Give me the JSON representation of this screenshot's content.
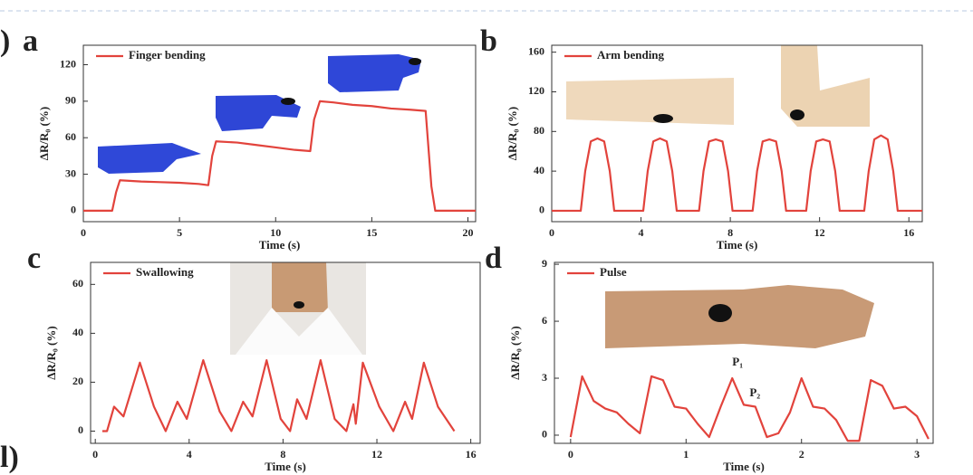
{
  "edge_texts": [
    ")",
    "l)"
  ],
  "chart_data": [
    {
      "type": "line",
      "panel": "a",
      "xlabel": "Time (s)",
      "ylabel": "ΔR/R₀ (%)",
      "x": [
        0,
        1.5,
        1.7,
        1.9,
        3,
        4,
        5,
        6,
        6.5,
        6.7,
        6.9,
        8,
        9,
        10,
        11,
        11.8,
        12,
        12.3,
        13,
        14,
        15,
        16,
        17,
        17.8,
        18.1,
        18.3,
        19,
        20.4
      ],
      "series": [
        {
          "name": "Finger bending",
          "color": "#e2433c",
          "values": [
            0,
            0,
            15,
            25,
            24,
            23.5,
            23,
            22,
            21,
            45,
            57,
            56,
            54,
            52,
            50,
            49,
            75,
            90,
            89,
            87,
            86,
            84,
            83,
            82,
            20,
            0,
            0,
            0
          ]
        }
      ],
      "xlim": [
        0,
        20.4
      ],
      "xticks": [
        0,
        5,
        10,
        15,
        20
      ],
      "ylim": [
        -9,
        136
      ],
      "yticks": [
        0,
        30,
        60,
        90,
        120
      ]
    },
    {
      "type": "line",
      "panel": "b",
      "xlabel": "Time (s)",
      "ylabel": "ΔR/R₀ (%)",
      "x": [
        0,
        1.3,
        1.5,
        1.75,
        2.05,
        2.35,
        2.6,
        2.8,
        4.1,
        4.3,
        4.55,
        4.85,
        5.15,
        5.4,
        5.6,
        6.6,
        6.8,
        7.05,
        7.35,
        7.65,
        7.9,
        8.1,
        9.0,
        9.2,
        9.45,
        9.75,
        10.05,
        10.3,
        10.5,
        11.4,
        11.6,
        11.85,
        12.15,
        12.45,
        12.7,
        12.9,
        14.0,
        14.2,
        14.45,
        14.75,
        15.05,
        15.3,
        15.5,
        16.6
      ],
      "series": [
        {
          "name": "Arm bending",
          "color": "#e2433c",
          "values": [
            0,
            0,
            40,
            70,
            73,
            70,
            40,
            0,
            0,
            40,
            70,
            73,
            70,
            40,
            0,
            0,
            40,
            70,
            72,
            70,
            40,
            0,
            0,
            40,
            70,
            72,
            70,
            40,
            0,
            0,
            40,
            70,
            72,
            70,
            40,
            0,
            0,
            40,
            72,
            76,
            72,
            40,
            0,
            0
          ]
        }
      ],
      "xlim": [
        0,
        16.6
      ],
      "xticks": [
        0,
        4,
        8,
        12,
        16
      ],
      "ylim": [
        -11,
        167
      ],
      "yticks": [
        0,
        40,
        80,
        120,
        160
      ]
    },
    {
      "type": "line",
      "panel": "c",
      "xlabel": "Time (s)",
      "ylabel": "ΔR/R₀ (%)",
      "x": [
        0.3,
        0.5,
        0.8,
        1.2,
        1.9,
        2.5,
        3.0,
        3.5,
        3.9,
        4.6,
        5.3,
        5.8,
        6.3,
        6.7,
        7.3,
        7.9,
        8.3,
        8.6,
        9.0,
        9.6,
        10.2,
        10.7,
        11.0,
        11.1,
        11.4,
        12.1,
        12.7,
        13.2,
        13.5,
        14.0,
        14.6,
        15.3
      ],
      "series": [
        {
          "name": "Swallowing",
          "color": "#e2433c",
          "values": [
            0,
            0,
            10,
            6,
            28,
            10,
            0,
            12,
            5,
            29,
            8,
            0,
            12,
            6,
            29,
            5,
            0,
            13,
            5,
            29,
            5,
            0,
            11,
            3,
            28,
            10,
            0,
            12,
            5,
            28,
            10,
            0
          ]
        }
      ],
      "xlim": [
        -0.2,
        16.4
      ],
      "xticks": [
        0,
        4,
        8,
        12,
        16
      ],
      "ylim": [
        -5,
        69
      ],
      "yticks": [
        0,
        20,
        40,
        60
      ]
    },
    {
      "type": "line",
      "panel": "d",
      "xlabel": "Time (s)",
      "ylabel": "ΔR/R₀ (%)",
      "x": [
        0,
        0.1,
        0.2,
        0.3,
        0.4,
        0.5,
        0.6,
        0.7,
        0.8,
        0.9,
        1.0,
        1.1,
        1.2,
        1.3,
        1.4,
        1.5,
        1.6,
        1.7,
        1.8,
        1.9,
        2.0,
        2.1,
        2.2,
        2.3,
        2.4,
        2.5,
        2.6,
        2.7,
        2.8,
        2.9,
        3.0,
        3.1
      ],
      "series": [
        {
          "name": "Pulse",
          "color": "#e2433c",
          "values": [
            -0.1,
            3.1,
            1.8,
            1.4,
            1.2,
            0.6,
            0.1,
            3.1,
            2.9,
            1.5,
            1.4,
            0.6,
            -0.1,
            1.5,
            3.0,
            1.6,
            1.5,
            -0.1,
            0.1,
            1.2,
            3.0,
            1.5,
            1.4,
            0.8,
            -0.3,
            -0.3,
            2.9,
            2.6,
            1.4,
            1.5,
            1.0,
            -0.2
          ]
        }
      ],
      "xlim": [
        -0.14,
        3.14
      ],
      "xticks": [
        0,
        1,
        2,
        3
      ],
      "ylim": [
        -0.43,
        9.1
      ],
      "yticks": [
        0,
        3,
        6,
        9
      ],
      "annotations": [
        {
          "text": "P₁",
          "x": 1.4,
          "y": 3.8
        },
        {
          "text": "P₂",
          "x": 1.55,
          "y": 2.2
        }
      ]
    }
  ]
}
